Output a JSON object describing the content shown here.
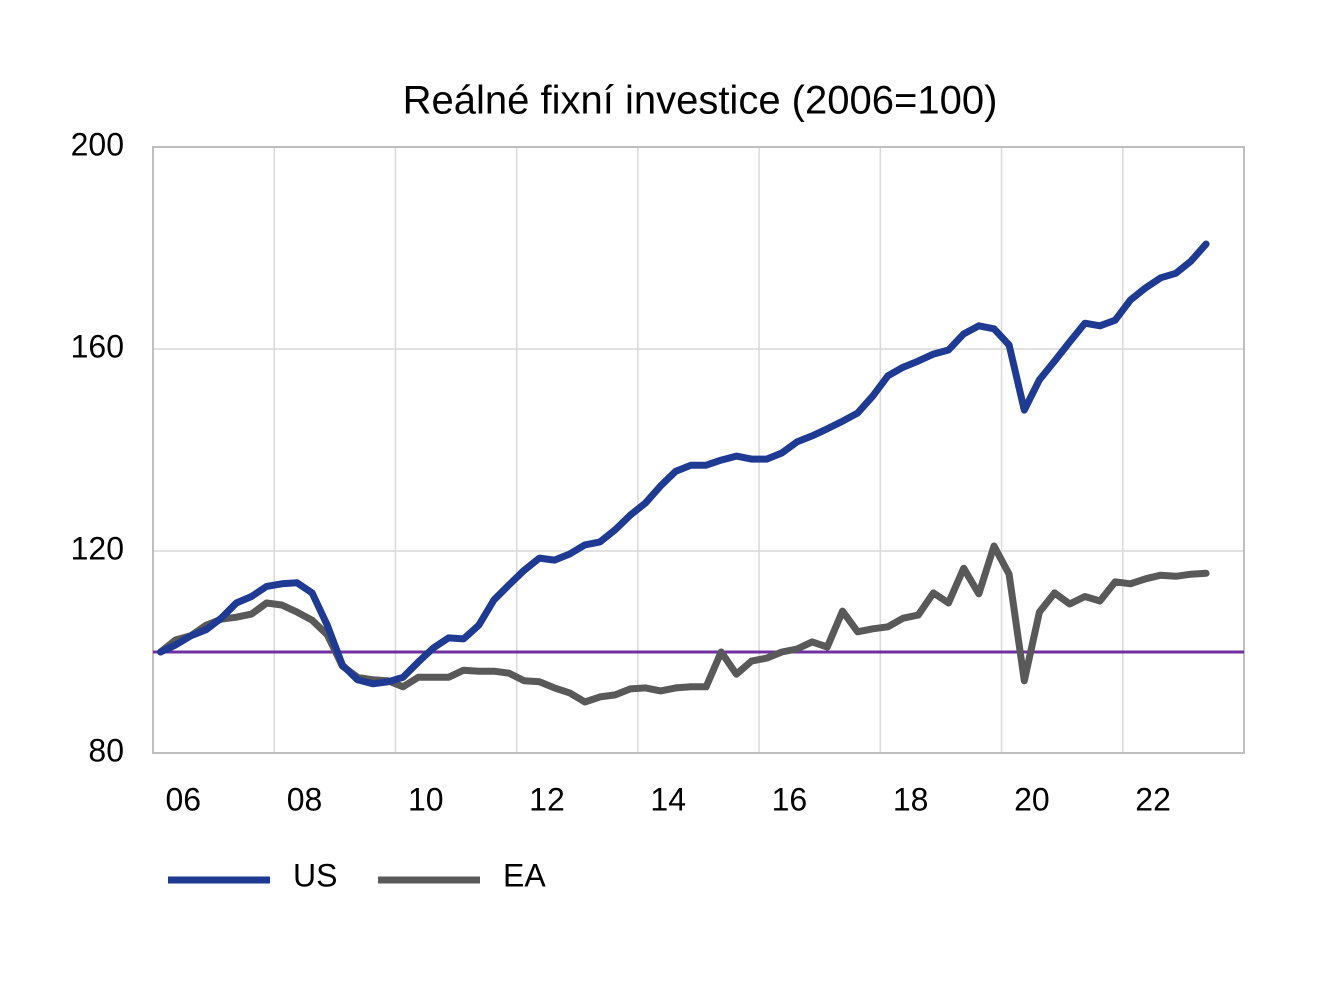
{
  "chart_data": {
    "type": "line",
    "title": "Reálné fixní investice (2006=100)",
    "x": [
      2006.125,
      2006.375,
      2006.625,
      2006.875,
      2007.125,
      2007.375,
      2007.625,
      2007.875,
      2008.125,
      2008.375,
      2008.625,
      2008.875,
      2009.125,
      2009.375,
      2009.625,
      2009.875,
      2010.125,
      2010.375,
      2010.625,
      2010.875,
      2011.125,
      2011.375,
      2011.625,
      2011.875,
      2012.125,
      2012.375,
      2012.625,
      2012.875,
      2013.125,
      2013.375,
      2013.625,
      2013.875,
      2014.125,
      2014.375,
      2014.625,
      2014.875,
      2015.125,
      2015.375,
      2015.625,
      2015.875,
      2016.125,
      2016.375,
      2016.625,
      2016.875,
      2017.125,
      2017.375,
      2017.625,
      2017.875,
      2018.125,
      2018.375,
      2018.625,
      2018.875,
      2019.125,
      2019.375,
      2019.625,
      2019.875,
      2020.125,
      2020.375,
      2020.625,
      2020.875,
      2021.125,
      2021.375,
      2021.625,
      2021.875,
      2022.125,
      2022.375,
      2022.625,
      2022.875,
      2023.125,
      2023.375
    ],
    "series": [
      {
        "name": "US",
        "color": "#1f3a93",
        "values": [
          100,
          101.4,
          103.2,
          104.4,
          106.7,
          109.7,
          111,
          113,
          113.5,
          113.7,
          111.7,
          105.3,
          97.4,
          94.5,
          93.7,
          94.1,
          95,
          98,
          100.8,
          102.8,
          102.6,
          105.3,
          110.3,
          113.3,
          116.2,
          118.6,
          118.2,
          119.4,
          121.2,
          121.8,
          124.2,
          127.1,
          129.5,
          132.9,
          135.8,
          137,
          137,
          138,
          138.8,
          138.2,
          138.2,
          139.4,
          141.6,
          142.8,
          144.2,
          145.7,
          147.3,
          150.7,
          154.7,
          156.4,
          157.6,
          159,
          159.8,
          163,
          164.6,
          164,
          160.8,
          147.9,
          153.9,
          157.6,
          161.4,
          165.1,
          164.6,
          165.7,
          169.7,
          172.1,
          174.1,
          175,
          177.4,
          180.8
        ]
      },
      {
        "name": "EA",
        "color": "#595959",
        "values": [
          100,
          102.4,
          103.2,
          105.3,
          106.5,
          106.9,
          107.5,
          109.7,
          109.3,
          107.9,
          106.3,
          103.4,
          97.2,
          95,
          94.5,
          94.3,
          93.1,
          95,
          95,
          95,
          96.4,
          96.2,
          96.2,
          95.8,
          94.3,
          94.1,
          92.9,
          91.9,
          90.1,
          91.1,
          91.5,
          92.7,
          92.9,
          92.3,
          92.9,
          93.1,
          93.1,
          100,
          95.6,
          98.2,
          98.8,
          100,
          100.6,
          102,
          101,
          108.1,
          104,
          104.6,
          105,
          106.7,
          107.3,
          111.7,
          109.7,
          116.6,
          111.5,
          121,
          115.4,
          94.3,
          107.9,
          111.7,
          109.5,
          111,
          110.1,
          113.9,
          113.5,
          114.5,
          115.2,
          115,
          115.4,
          115.6
        ]
      }
    ],
    "xlim": [
      2006,
      2024
    ],
    "xticks": [
      {
        "value": 2006,
        "label": "06"
      },
      {
        "value": 2008,
        "label": "08"
      },
      {
        "value": 2010,
        "label": "10"
      },
      {
        "value": 2012,
        "label": "12"
      },
      {
        "value": 2014,
        "label": "14"
      },
      {
        "value": 2016,
        "label": "16"
      },
      {
        "value": 2018,
        "label": "18"
      },
      {
        "value": 2020,
        "label": "20"
      },
      {
        "value": 2022,
        "label": "22"
      }
    ],
    "ylim": [
      80,
      200
    ],
    "yticks": [
      80,
      120,
      160,
      200
    ],
    "reference_line": {
      "value": 100,
      "color": "#7030a0"
    },
    "grid": true,
    "legend": "bottom-left"
  }
}
